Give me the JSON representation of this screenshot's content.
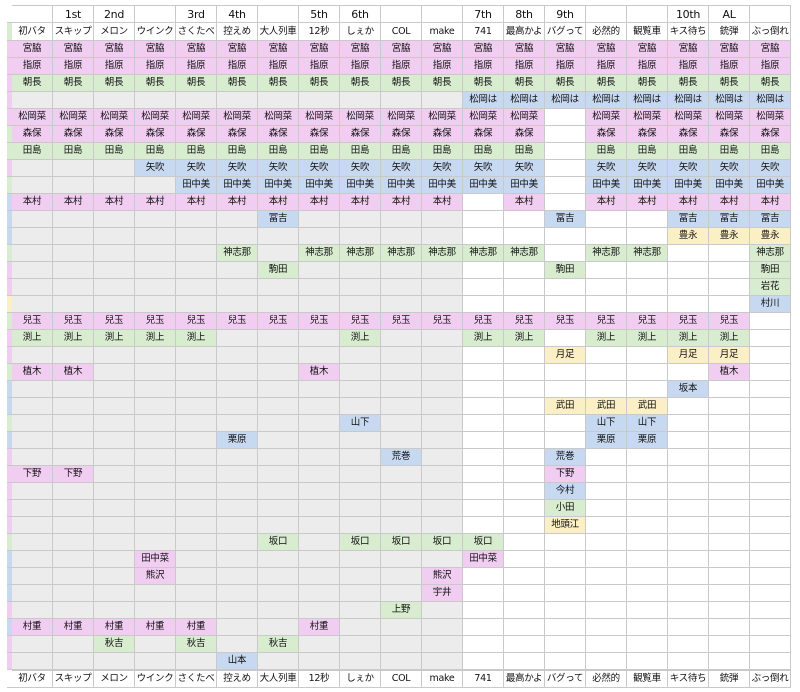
{
  "generations": [
    "",
    "1st",
    "2nd",
    "",
    "3rd",
    "4th",
    "",
    "5th",
    "6th",
    "",
    "",
    "7th",
    "8th",
    "9th",
    "",
    "",
    "10th",
    "AL",
    ""
  ],
  "songs": [
    "初バタ",
    "スキップ",
    "メロン",
    "ウインク",
    "さくたべ",
    "控えめ",
    "大人列車",
    "12秒",
    "しぇか",
    "COL",
    "make",
    "741",
    "最高かよ",
    "バグって",
    "必然的",
    "観覧車",
    "キス待ち",
    "銃弾",
    "ぶっ倒れ"
  ],
  "colors": {
    "p": "#f2cdf2",
    "b": "#c7d9f1",
    "g": "#d8ecd0",
    "y": "#fbefc6",
    "empty_gray": "#ececec",
    "empty_white": "#ffffff",
    "border": "#c9c9c9"
  },
  "groups": [
    "g",
    "p",
    "p",
    "p",
    "p",
    "p",
    "g",
    "g",
    "p",
    "g",
    "b",
    "b",
    "b",
    "g",
    "p",
    "p",
    "y",
    "g",
    "p",
    "p",
    "g",
    "b",
    "b",
    "g",
    "b",
    "p",
    "p",
    "p",
    "p",
    "p",
    "g",
    "b",
    "b",
    "b",
    "p",
    "b",
    "p",
    "p",
    "p",
    "g",
    "b"
  ],
  "rows": [
    [
      [
        "宮脇",
        "p"
      ],
      [
        "宮脇",
        "p"
      ],
      [
        "宮脇",
        "p"
      ],
      [
        "宮脇",
        "p"
      ],
      [
        "宮脇",
        "p"
      ],
      [
        "宮脇",
        "p"
      ],
      [
        "宮脇",
        "p"
      ],
      [
        "宮脇",
        "p"
      ],
      [
        "宮脇",
        "p"
      ],
      [
        "宮脇",
        "p"
      ],
      [
        "宮脇",
        "p"
      ],
      [
        "宮脇",
        "p"
      ],
      [
        "宮脇",
        "p"
      ],
      [
        "宮脇",
        "p"
      ],
      [
        "宮脇",
        "p"
      ],
      [
        "宮脇",
        "p"
      ],
      [
        "宮脇",
        "p"
      ],
      [
        "宮脇",
        "p"
      ],
      [
        "宮脇",
        "p"
      ]
    ],
    [
      [
        "指原",
        "p"
      ],
      [
        "指原",
        "p"
      ],
      [
        "指原",
        "p"
      ],
      [
        "指原",
        "p"
      ],
      [
        "指原",
        "p"
      ],
      [
        "指原",
        "p"
      ],
      [
        "指原",
        "p"
      ],
      [
        "指原",
        "p"
      ],
      [
        "指原",
        "p"
      ],
      [
        "指原",
        "p"
      ],
      [
        "指原",
        "p"
      ],
      [
        "指原",
        "p"
      ],
      [
        "指原",
        "p"
      ],
      [
        "指原",
        "p"
      ],
      [
        "指原",
        "p"
      ],
      [
        "指原",
        "p"
      ],
      [
        "指原",
        "p"
      ],
      [
        "指原",
        "p"
      ],
      [
        "指原",
        "p"
      ]
    ],
    [
      [
        "朝長",
        "g"
      ],
      [
        "朝長",
        "g"
      ],
      [
        "朝長",
        "g"
      ],
      [
        "朝長",
        "g"
      ],
      [
        "朝長",
        "g"
      ],
      [
        "朝長",
        "g"
      ],
      [
        "朝長",
        "g"
      ],
      [
        "朝長",
        "g"
      ],
      [
        "朝長",
        "g"
      ],
      [
        "朝長",
        "g"
      ],
      [
        "朝長",
        "g"
      ],
      [
        "朝長",
        "g"
      ],
      [
        "朝長",
        "g"
      ],
      [
        "朝長",
        "g"
      ],
      [
        "朝長",
        "g"
      ],
      [
        "朝長",
        "g"
      ],
      [
        "朝長",
        "g"
      ],
      [
        "朝長",
        "g"
      ],
      [
        "朝長",
        "g"
      ]
    ],
    [
      null,
      null,
      null,
      null,
      null,
      null,
      null,
      null,
      null,
      null,
      null,
      [
        "松岡は",
        "b"
      ],
      [
        "松岡は",
        "b"
      ],
      [
        "松岡は",
        "b"
      ],
      [
        "松岡は",
        "b"
      ],
      [
        "松岡は",
        "b"
      ],
      [
        "松岡は",
        "b"
      ],
      [
        "松岡は",
        "b"
      ],
      [
        "松岡は",
        "b"
      ]
    ],
    [
      [
        "松岡菜",
        "p"
      ],
      [
        "松岡菜",
        "p"
      ],
      [
        "松岡菜",
        "p"
      ],
      [
        "松岡菜",
        "p"
      ],
      [
        "松岡菜",
        "p"
      ],
      [
        "松岡菜",
        "p"
      ],
      [
        "松岡菜",
        "p"
      ],
      [
        "松岡菜",
        "p"
      ],
      [
        "松岡菜",
        "p"
      ],
      [
        "松岡菜",
        "p"
      ],
      [
        "松岡菜",
        "p"
      ],
      [
        "松岡菜",
        "p"
      ],
      [
        "松岡菜",
        "p"
      ],
      null,
      [
        "松岡菜",
        "p"
      ],
      [
        "松岡菜",
        "p"
      ],
      [
        "松岡菜",
        "p"
      ],
      [
        "松岡菜",
        "p"
      ],
      [
        "松岡菜",
        "p"
      ]
    ],
    [
      [
        "森保",
        "p"
      ],
      [
        "森保",
        "p"
      ],
      [
        "森保",
        "p"
      ],
      [
        "森保",
        "p"
      ],
      [
        "森保",
        "p"
      ],
      [
        "森保",
        "p"
      ],
      [
        "森保",
        "p"
      ],
      [
        "森保",
        "p"
      ],
      [
        "森保",
        "p"
      ],
      [
        "森保",
        "p"
      ],
      [
        "森保",
        "p"
      ],
      [
        "森保",
        "p"
      ],
      [
        "森保",
        "p"
      ],
      null,
      [
        "森保",
        "p"
      ],
      [
        "森保",
        "p"
      ],
      [
        "森保",
        "p"
      ],
      [
        "森保",
        "p"
      ],
      [
        "森保",
        "p"
      ]
    ],
    [
      [
        "田島",
        "g"
      ],
      [
        "田島",
        "g"
      ],
      [
        "田島",
        "g"
      ],
      [
        "田島",
        "g"
      ],
      [
        "田島",
        "g"
      ],
      [
        "田島",
        "g"
      ],
      [
        "田島",
        "g"
      ],
      [
        "田島",
        "g"
      ],
      [
        "田島",
        "g"
      ],
      [
        "田島",
        "g"
      ],
      [
        "田島",
        "g"
      ],
      [
        "田島",
        "g"
      ],
      [
        "田島",
        "g"
      ],
      null,
      [
        "田島",
        "g"
      ],
      [
        "田島",
        "g"
      ],
      [
        "田島",
        "g"
      ],
      [
        "田島",
        "g"
      ],
      [
        "田島",
        "g"
      ]
    ],
    [
      null,
      null,
      null,
      [
        "矢吹",
        "b"
      ],
      [
        "矢吹",
        "b"
      ],
      [
        "矢吹",
        "b"
      ],
      [
        "矢吹",
        "b"
      ],
      [
        "矢吹",
        "b"
      ],
      [
        "矢吹",
        "b"
      ],
      [
        "矢吹",
        "b"
      ],
      [
        "矢吹",
        "b"
      ],
      [
        "矢吹",
        "b"
      ],
      [
        "矢吹",
        "b"
      ],
      null,
      [
        "矢吹",
        "b"
      ],
      [
        "矢吹",
        "b"
      ],
      [
        "矢吹",
        "b"
      ],
      [
        "矢吹",
        "b"
      ],
      [
        "矢吹",
        "b"
      ]
    ],
    [
      null,
      null,
      null,
      null,
      [
        "田中美",
        "b"
      ],
      [
        "田中美",
        "b"
      ],
      [
        "田中美",
        "b"
      ],
      [
        "田中美",
        "b"
      ],
      [
        "田中美",
        "b"
      ],
      [
        "田中美",
        "b"
      ],
      [
        "田中美",
        "b"
      ],
      [
        "田中美",
        "b"
      ],
      [
        "田中美",
        "b"
      ],
      null,
      [
        "田中美",
        "b"
      ],
      [
        "田中美",
        "b"
      ],
      [
        "田中美",
        "b"
      ],
      [
        "田中美",
        "b"
      ],
      [
        "田中美",
        "b"
      ]
    ],
    [
      [
        "本村",
        "p"
      ],
      [
        "本村",
        "p"
      ],
      [
        "本村",
        "p"
      ],
      [
        "本村",
        "p"
      ],
      [
        "本村",
        "p"
      ],
      [
        "本村",
        "p"
      ],
      [
        "本村",
        "p"
      ],
      [
        "本村",
        "p"
      ],
      [
        "本村",
        "p"
      ],
      [
        "本村",
        "p"
      ],
      [
        "本村",
        "p"
      ],
      null,
      [
        "本村",
        "p"
      ],
      null,
      [
        "本村",
        "p"
      ],
      [
        "本村",
        "p"
      ],
      [
        "本村",
        "p"
      ],
      [
        "本村",
        "p"
      ],
      [
        "本村",
        "p"
      ]
    ],
    [
      null,
      null,
      null,
      null,
      null,
      null,
      [
        "冨吉",
        "b"
      ],
      null,
      null,
      null,
      null,
      null,
      null,
      [
        "冨吉",
        "b"
      ],
      null,
      null,
      [
        "冨吉",
        "b"
      ],
      [
        "冨吉",
        "b"
      ],
      [
        "冨吉",
        "b"
      ]
    ],
    [
      null,
      null,
      null,
      null,
      null,
      null,
      null,
      null,
      null,
      null,
      null,
      null,
      null,
      null,
      null,
      null,
      [
        "豊永",
        "y"
      ],
      [
        "豊永",
        "y"
      ],
      [
        "豊永",
        "y"
      ]
    ],
    [
      null,
      null,
      null,
      null,
      null,
      [
        "神志那",
        "g"
      ],
      null,
      [
        "神志那",
        "g"
      ],
      [
        "神志那",
        "g"
      ],
      [
        "神志那",
        "g"
      ],
      [
        "神志那",
        "g"
      ],
      [
        "神志那",
        "g"
      ],
      [
        "神志那",
        "g"
      ],
      null,
      [
        "神志那",
        "g"
      ],
      [
        "神志那",
        "g"
      ],
      null,
      null,
      [
        "神志那",
        "g"
      ]
    ],
    [
      null,
      null,
      null,
      null,
      null,
      null,
      [
        "駒田",
        "g"
      ],
      null,
      null,
      null,
      null,
      null,
      null,
      [
        "駒田",
        "g"
      ],
      null,
      null,
      null,
      null,
      [
        "駒田",
        "g"
      ]
    ],
    [
      null,
      null,
      null,
      null,
      null,
      null,
      null,
      null,
      null,
      null,
      null,
      null,
      null,
      null,
      null,
      null,
      null,
      null,
      [
        "岩花",
        "g"
      ]
    ],
    [
      null,
      null,
      null,
      null,
      null,
      null,
      null,
      null,
      null,
      null,
      null,
      null,
      null,
      null,
      null,
      null,
      null,
      null,
      [
        "村川",
        "b"
      ]
    ],
    [
      [
        "兒玉",
        "p"
      ],
      [
        "兒玉",
        "p"
      ],
      [
        "兒玉",
        "p"
      ],
      [
        "兒玉",
        "p"
      ],
      [
        "兒玉",
        "p"
      ],
      [
        "兒玉",
        "p"
      ],
      [
        "兒玉",
        "p"
      ],
      [
        "兒玉",
        "p"
      ],
      [
        "兒玉",
        "p"
      ],
      [
        "兒玉",
        "p"
      ],
      [
        "兒玉",
        "p"
      ],
      [
        "兒玉",
        "p"
      ],
      [
        "兒玉",
        "p"
      ],
      [
        "兒玉",
        "p"
      ],
      [
        "兒玉",
        "p"
      ],
      [
        "兒玉",
        "p"
      ],
      [
        "兒玉",
        "p"
      ],
      [
        "兒玉",
        "p"
      ],
      null
    ],
    [
      [
        "渕上",
        "g"
      ],
      [
        "渕上",
        "g"
      ],
      [
        "渕上",
        "g"
      ],
      [
        "渕上",
        "g"
      ],
      [
        "渕上",
        "g"
      ],
      null,
      null,
      null,
      [
        "渕上",
        "g"
      ],
      null,
      null,
      [
        "渕上",
        "g"
      ],
      [
        "渕上",
        "g"
      ],
      null,
      [
        "渕上",
        "g"
      ],
      [
        "渕上",
        "g"
      ],
      [
        "渕上",
        "g"
      ],
      [
        "渕上",
        "g"
      ],
      null
    ],
    [
      null,
      null,
      null,
      null,
      null,
      null,
      null,
      null,
      null,
      null,
      null,
      null,
      null,
      [
        "月足",
        "y"
      ],
      null,
      null,
      [
        "月足",
        "y"
      ],
      [
        "月足",
        "y"
      ],
      null
    ],
    [
      [
        "植木",
        "p"
      ],
      [
        "植木",
        "p"
      ],
      null,
      null,
      null,
      null,
      null,
      [
        "植木",
        "p"
      ],
      null,
      null,
      null,
      null,
      null,
      null,
      null,
      null,
      null,
      [
        "植木",
        "p"
      ],
      null
    ],
    [
      null,
      null,
      null,
      null,
      null,
      null,
      null,
      null,
      null,
      null,
      null,
      null,
      null,
      null,
      null,
      null,
      [
        "坂本",
        "b"
      ],
      null,
      null
    ],
    [
      null,
      null,
      null,
      null,
      null,
      null,
      null,
      null,
      null,
      null,
      null,
      null,
      null,
      [
        "武田",
        "y"
      ],
      [
        "武田",
        "y"
      ],
      [
        "武田",
        "y"
      ],
      null,
      null,
      null
    ],
    [
      null,
      null,
      null,
      null,
      null,
      null,
      null,
      null,
      [
        "山下",
        "b"
      ],
      null,
      null,
      null,
      null,
      null,
      [
        "山下",
        "b"
      ],
      [
        "山下",
        "b"
      ],
      null,
      null,
      null
    ],
    [
      null,
      null,
      null,
      null,
      null,
      [
        "栗原",
        "b"
      ],
      null,
      null,
      null,
      null,
      null,
      null,
      null,
      null,
      [
        "栗原",
        "b"
      ],
      [
        "栗原",
        "b"
      ],
      null,
      null,
      null
    ],
    [
      null,
      null,
      null,
      null,
      null,
      null,
      null,
      null,
      null,
      [
        "荒巻",
        "b"
      ],
      null,
      null,
      null,
      [
        "荒巻",
        "b"
      ],
      null,
      null,
      null,
      null,
      null
    ],
    [
      [
        "下野",
        "p"
      ],
      [
        "下野",
        "p"
      ],
      null,
      null,
      null,
      null,
      null,
      null,
      null,
      null,
      null,
      null,
      null,
      [
        "下野",
        "p"
      ],
      null,
      null,
      null,
      null,
      null
    ],
    [
      null,
      null,
      null,
      null,
      null,
      null,
      null,
      null,
      null,
      null,
      null,
      null,
      null,
      [
        "今村",
        "b"
      ],
      null,
      null,
      null,
      null,
      null
    ],
    [
      null,
      null,
      null,
      null,
      null,
      null,
      null,
      null,
      null,
      null,
      null,
      null,
      null,
      [
        "小田",
        "g"
      ],
      null,
      null,
      null,
      null,
      null
    ],
    [
      null,
      null,
      null,
      null,
      null,
      null,
      null,
      null,
      null,
      null,
      null,
      null,
      null,
      [
        "地頭江",
        "y"
      ],
      null,
      null,
      null,
      null,
      null
    ],
    [
      null,
      null,
      null,
      null,
      null,
      null,
      [
        "坂口",
        "g"
      ],
      null,
      [
        "坂口",
        "g"
      ],
      [
        "坂口",
        "g"
      ],
      [
        "坂口",
        "g"
      ],
      [
        "坂口",
        "g"
      ],
      null,
      null,
      null,
      null,
      null,
      null,
      null
    ],
    [
      null,
      null,
      null,
      [
        "田中菜",
        "p"
      ],
      null,
      null,
      null,
      null,
      null,
      null,
      null,
      [
        "田中菜",
        "p"
      ],
      null,
      null,
      null,
      null,
      null,
      null,
      null
    ],
    [
      null,
      null,
      null,
      [
        "熊沢",
        "p"
      ],
      null,
      null,
      null,
      null,
      null,
      null,
      [
        "熊沢",
        "p"
      ],
      null,
      null,
      null,
      null,
      null,
      null,
      null,
      null
    ],
    [
      null,
      null,
      null,
      null,
      null,
      null,
      null,
      null,
      null,
      null,
      [
        "宇井",
        "p"
      ],
      null,
      null,
      null,
      null,
      null,
      null,
      null,
      null
    ],
    [
      null,
      null,
      null,
      null,
      null,
      null,
      null,
      null,
      null,
      [
        "上野",
        "g"
      ],
      null,
      null,
      null,
      null,
      null,
      null,
      null,
      null,
      null
    ],
    [
      [
        "村重",
        "p"
      ],
      [
        "村重",
        "p"
      ],
      [
        "村重",
        "p"
      ],
      [
        "村重",
        "p"
      ],
      [
        "村重",
        "p"
      ],
      null,
      null,
      [
        "村重",
        "p"
      ],
      null,
      null,
      null,
      null,
      null,
      null,
      null,
      null,
      null,
      null,
      null
    ],
    [
      null,
      null,
      [
        "秋吉",
        "g"
      ],
      null,
      [
        "秋吉",
        "g"
      ],
      null,
      [
        "秋吉",
        "g"
      ],
      null,
      null,
      null,
      null,
      null,
      null,
      null,
      null,
      null,
      null,
      null,
      null
    ],
    [
      null,
      null,
      null,
      null,
      null,
      [
        "山本",
        "b"
      ],
      null,
      null,
      null,
      null,
      null,
      null,
      null,
      null,
      null,
      null,
      null,
      null,
      null
    ]
  ]
}
